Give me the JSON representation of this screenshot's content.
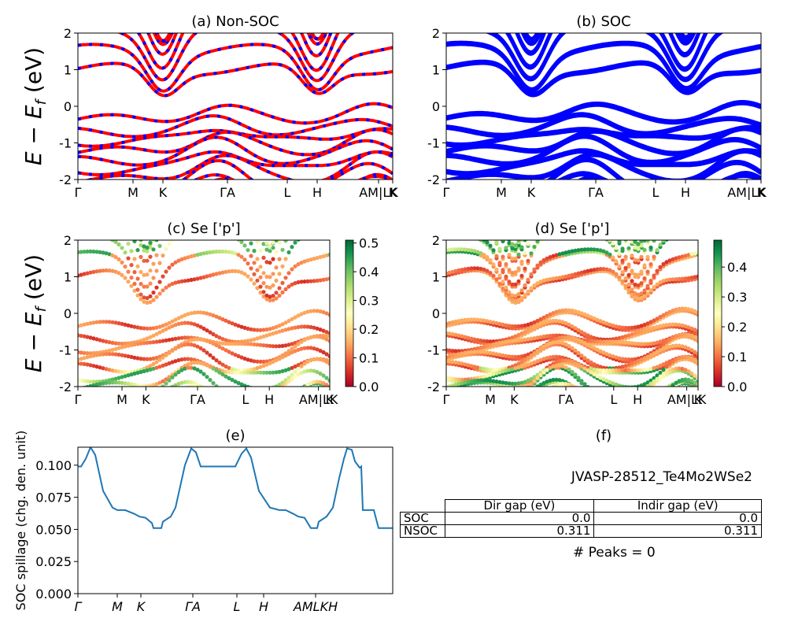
{
  "colors": {
    "nonsoc_band_a": "#ff0000",
    "nonsoc_band_b": "#0000ff",
    "soc_band": "#0000ff",
    "spillage_line": "#1f77b4",
    "colormap": [
      "#a50026",
      "#d73027",
      "#f46d43",
      "#fdae61",
      "#fee08b",
      "#ffffbf",
      "#d9ef8b",
      "#a6d96a",
      "#66bd63",
      "#1a9850",
      "#006837"
    ]
  },
  "panels": {
    "a": {
      "title": "(a) Non-SOC",
      "ylabel": "E − E_f (eV)"
    },
    "b": {
      "title": "(b) SOC"
    },
    "c": {
      "title": "(c)  Se ['p']",
      "ylabel": "E − E_f (eV)"
    },
    "d": {
      "title": "(d) Se ['p']"
    },
    "e": {
      "title": "(e)",
      "ylabel": "SOC spillage (chg. den. unit)"
    },
    "f": {
      "title": "(f)",
      "material_id": "JVASP-28512_Te4Mo2WSe2",
      "table": {
        "columns": [
          "Dir gap (eV)",
          "Indir gap (eV)"
        ],
        "rows": [
          {
            "label": "SOC",
            "values": [
              "0.0",
              "0.0"
            ]
          },
          {
            "label": "NSOC",
            "values": [
              "0.311",
              "0.311"
            ]
          }
        ]
      },
      "peaks_text": "# Peaks = 0"
    }
  },
  "chart_data": [
    {
      "type": "line",
      "panel": "a",
      "title": "(a) Non-SOC",
      "ylabel": "E − E_f (eV)",
      "ylim": [
        -2,
        2
      ],
      "yticks": [
        -2,
        -1,
        0,
        1,
        2
      ],
      "xticks": [
        "Γ",
        "M",
        "K",
        "ΓA",
        "L",
        "H",
        "AM|LK",
        "K"
      ],
      "kpath_fractions": [
        0,
        0.175,
        0.27,
        0.475,
        0.665,
        0.76,
        0.955,
        1.0
      ],
      "description_band_extrema": {
        "conduction_min_at_K": 0.31,
        "valence_max_near_ML": -0.0
      }
    },
    {
      "type": "line",
      "panel": "b",
      "title": "(b) SOC",
      "ylim": [
        -2,
        2
      ],
      "yticks": [
        -2,
        -1,
        0,
        1,
        2
      ],
      "xticks": [
        "Γ",
        "M",
        "K",
        "ΓA",
        "L",
        "H",
        "AM|LK",
        "K"
      ]
    },
    {
      "type": "scatter",
      "panel": "c",
      "title": "(c)  Se ['p']",
      "ylabel": "E − E_f (eV)",
      "ylim": [
        -2,
        2
      ],
      "yticks": [
        -2,
        -1,
        0,
        1,
        2
      ],
      "colorbar_ticks": [
        0.0,
        0.1,
        0.2,
        0.3,
        0.4,
        0.5
      ],
      "colorbar_range": [
        0.0,
        0.51
      ],
      "xticks": [
        "Γ",
        "M",
        "K",
        "ΓA",
        "L",
        "H",
        "AM|LK",
        "K"
      ]
    },
    {
      "type": "scatter",
      "panel": "d",
      "title": "(d) Se ['p']",
      "ylim": [
        -2,
        2
      ],
      "yticks": [
        -2,
        -1,
        0,
        1,
        2
      ],
      "colorbar_ticks": [
        0.0,
        0.1,
        0.2,
        0.3,
        0.4
      ],
      "colorbar_range": [
        0.0,
        0.49
      ],
      "xticks": [
        "Γ",
        "M",
        "K",
        "ΓA",
        "L",
        "H",
        "AM|LK",
        "K"
      ]
    },
    {
      "type": "line",
      "panel": "e",
      "title": "(e)",
      "ylabel": "SOC spillage (chg. den. unit)",
      "ylim": [
        0.0,
        0.114
      ],
      "yticks": [
        0.0,
        0.025,
        0.05,
        0.075,
        0.1
      ],
      "xticks": [
        "Γ",
        "M",
        "K",
        "ΓA",
        "L",
        "H",
        "AMLKH"
      ],
      "series": [
        {
          "values": [
            [
              0.0,
              0.099
            ],
            [
              0.01,
              0.099
            ],
            [
              0.025,
              0.105
            ],
            [
              0.04,
              0.114
            ],
            [
              0.055,
              0.108
            ],
            [
              0.08,
              0.08
            ],
            [
              0.11,
              0.067
            ],
            [
              0.125,
              0.065
            ],
            [
              0.15,
              0.065
            ],
            [
              0.18,
              0.062
            ],
            [
              0.195,
              0.06
            ],
            [
              0.215,
              0.059
            ],
            [
              0.235,
              0.055
            ],
            [
              0.24,
              0.051
            ],
            [
              0.265,
              0.051
            ],
            [
              0.27,
              0.056
            ],
            [
              0.295,
              0.06
            ],
            [
              0.31,
              0.067
            ],
            [
              0.34,
              0.1
            ],
            [
              0.36,
              0.113
            ],
            [
              0.375,
              0.11
            ],
            [
              0.39,
              0.099
            ],
            [
              0.42,
              0.099
            ],
            [
              0.49,
              0.099
            ],
            [
              0.5,
              0.099
            ],
            [
              0.52,
              0.109
            ],
            [
              0.535,
              0.113
            ],
            [
              0.55,
              0.106
            ],
            [
              0.575,
              0.08
            ],
            [
              0.61,
              0.067
            ],
            [
              0.64,
              0.065
            ],
            [
              0.66,
              0.065
            ],
            [
              0.685,
              0.062
            ],
            [
              0.7,
              0.06
            ],
            [
              0.72,
              0.059
            ],
            [
              0.73,
              0.055
            ],
            [
              0.74,
              0.051
            ],
            [
              0.76,
              0.051
            ],
            [
              0.765,
              0.056
            ],
            [
              0.79,
              0.06
            ],
            [
              0.81,
              0.067
            ],
            [
              0.83,
              0.09
            ],
            [
              0.845,
              0.105
            ],
            [
              0.855,
              0.113
            ],
            [
              0.87,
              0.112
            ],
            [
              0.88,
              0.103
            ],
            [
              0.895,
              0.098
            ],
            [
              0.9,
              0.099
            ],
            [
              0.905,
              0.065
            ],
            [
              0.94,
              0.065
            ],
            [
              0.955,
              0.051
            ],
            [
              1.0,
              0.051
            ]
          ]
        }
      ]
    }
  ]
}
